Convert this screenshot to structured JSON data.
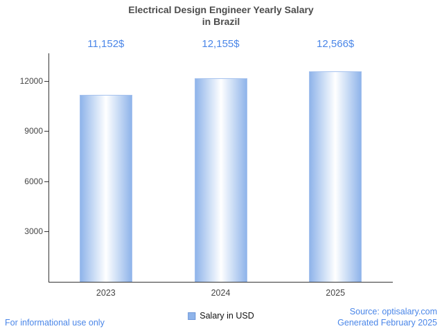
{
  "title": {
    "line1": "Electrical Design Engineer Yearly Salary",
    "line2": "in Brazil"
  },
  "chart_data": {
    "type": "bar",
    "title": "Electrical Design Engineer Yearly Salary in Brazil",
    "categories": [
      "2023",
      "2024",
      "2025"
    ],
    "values": [
      11152,
      12155,
      12566
    ],
    "value_labels": [
      "11,152$",
      "12,155$",
      "12,566$"
    ],
    "xlabel": "",
    "ylabel": "",
    "ylim": [
      0,
      13655
    ],
    "yticks": [
      3000,
      6000,
      9000,
      12000
    ],
    "grid": false,
    "legend": "Salary in USD",
    "legend_position": "bottom"
  },
  "footer": {
    "disclaimer": "For informational use only",
    "source": "Source: optisalary.com",
    "generated": "Generated February 2025"
  },
  "colors": {
    "accent": "#4a86e8",
    "bar_edge": "#8fb4ea",
    "bar_center": "#ffffff",
    "axis": "#333333",
    "text": "#444444"
  }
}
